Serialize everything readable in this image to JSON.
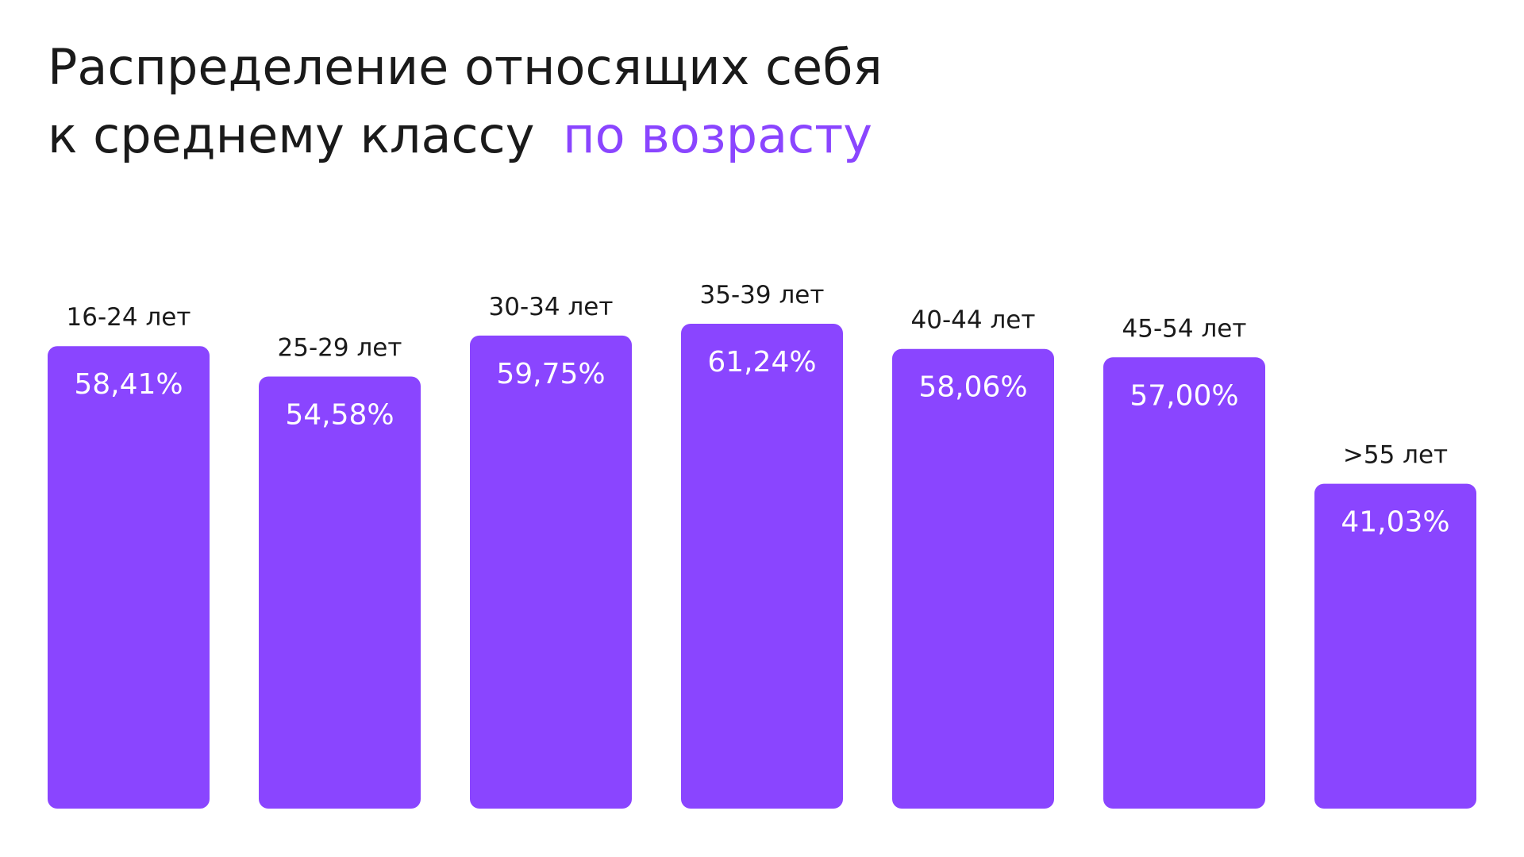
{
  "chart_data": {
    "type": "bar",
    "title_lines": [
      "Распределение относящих себя",
      "к среднему классу"
    ],
    "title_accent": "по возрасту",
    "accent_color": "#8a45ff",
    "categories": [
      "16-24 лет",
      "25-29 лет",
      "30-34 лет",
      "35-39 лет",
      "40-44 лет",
      "45-54 лет",
      ">55 лет"
    ],
    "values": [
      58.41,
      54.58,
      59.75,
      61.24,
      58.06,
      57.0,
      41.03
    ],
    "value_labels": [
      "58,41%",
      "54,58%",
      "59,75%",
      "61,24%",
      "58,06%",
      "57,00%",
      "41,03%"
    ],
    "color": "#8a45ff"
  }
}
